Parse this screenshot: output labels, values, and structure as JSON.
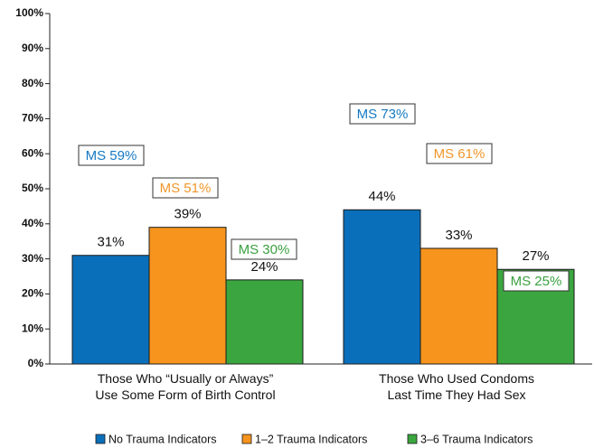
{
  "chart_data": {
    "type": "bar",
    "categories": [
      "Those Who “Usually or Always”\nUse Some Form of Birth Control",
      "Those Who Used Condoms\nLast Time They Had Sex"
    ],
    "series": [
      {
        "name": "No Trauma Indicators",
        "color": "#0a6fba",
        "values": [
          31,
          44
        ],
        "value_labels": [
          "31%",
          "44%"
        ],
        "annotations": [
          "MS 59%",
          "MS 73%"
        ],
        "annotation_color": "#1479c3"
      },
      {
        "name": "1–2 Trauma Indicators",
        "color": "#f7941d",
        "values": [
          39,
          33
        ],
        "value_labels": [
          "39%",
          "33%"
        ],
        "annotations": [
          "MS 51%",
          "MS 61%"
        ],
        "annotation_color": "#f0962a"
      },
      {
        "name": "3–6 Trauma Indicators",
        "color": "#3ba63f",
        "values": [
          24,
          27
        ],
        "value_labels": [
          "24%",
          "27%"
        ],
        "annotations": [
          "MS 30%",
          "MS 25%"
        ],
        "annotation_color": "#3aa040"
      }
    ],
    "ylim": [
      0,
      100
    ],
    "yticks": [
      {
        "value": 0,
        "label": "0%"
      },
      {
        "value": 10,
        "label": "10%"
      },
      {
        "value": 20,
        "label": "20%"
      },
      {
        "value": 30,
        "label": "30%"
      },
      {
        "value": 40,
        "label": "40%"
      },
      {
        "value": 50,
        "label": "50%"
      },
      {
        "value": 60,
        "label": "60%"
      },
      {
        "value": 70,
        "label": "70%"
      },
      {
        "value": 80,
        "label": "80%"
      },
      {
        "value": 90,
        "label": "90%"
      },
      {
        "value": 100,
        "label": "100%"
      }
    ],
    "legend": "bottom"
  }
}
